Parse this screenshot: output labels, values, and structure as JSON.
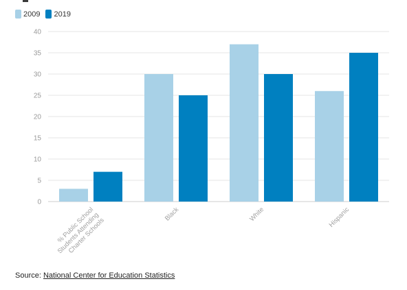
{
  "legend": {
    "items": [
      {
        "name": "2009",
        "color": "#a8d1e7"
      },
      {
        "name": "2019",
        "color": "#0080c0"
      }
    ]
  },
  "source": {
    "prefix": "Source: ",
    "link_text": "National Center for Education Statistics"
  },
  "chart_data": {
    "type": "bar",
    "categories": [
      "% Public School Students Attending Charter Schools",
      "Black",
      "White",
      "Hispanic"
    ],
    "category_label_lines": [
      [
        "% Public School",
        "Students Attending",
        "Charter Schools"
      ],
      [
        "Black"
      ],
      [
        "White"
      ],
      [
        "Hispanic"
      ]
    ],
    "series": [
      {
        "name": "2009",
        "color": "#a8d1e7",
        "values": [
          3,
          30,
          37,
          26
        ]
      },
      {
        "name": "2019",
        "color": "#0080c0",
        "values": [
          7,
          25,
          30,
          35
        ]
      }
    ],
    "ylim": [
      0,
      40
    ],
    "yticks": [
      0,
      5,
      10,
      15,
      20,
      25,
      30,
      35,
      40
    ],
    "grid": true,
    "legend_position": "top-left"
  }
}
